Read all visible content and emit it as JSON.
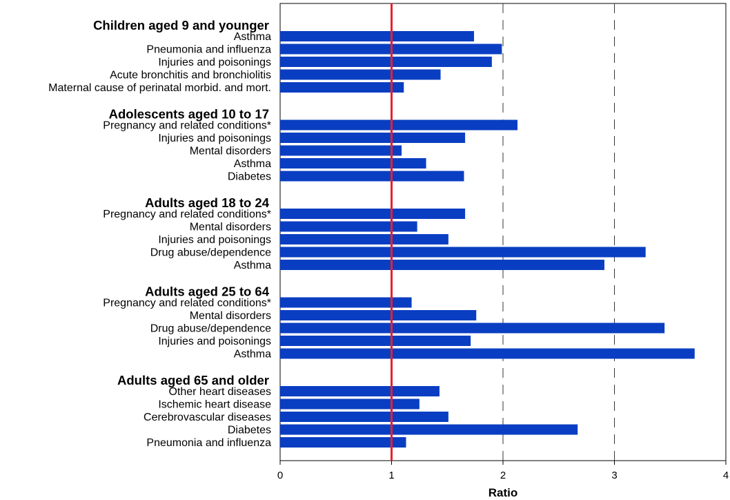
{
  "chart_data": {
    "type": "bar",
    "orientation": "horizontal",
    "xlabel": "Ratio",
    "xlim": [
      0,
      4
    ],
    "xticks": [
      "0",
      "1",
      "2",
      "3",
      "4"
    ],
    "reference_line": {
      "value": 1,
      "color": "#e8202a"
    },
    "dashed_gridlines_at": [
      2,
      3
    ],
    "bar_color": "#0a3ec2",
    "groups": [
      {
        "title": "Children aged 9 and younger",
        "items": [
          {
            "label": "Asthma",
            "value": 1.74
          },
          {
            "label": "Pneumonia and influenza",
            "value": 1.99
          },
          {
            "label": "Injuries and poisonings",
            "value": 1.9
          },
          {
            "label": "Acute bronchitis and bronchiolitis",
            "value": 1.44
          },
          {
            "label": "Maternal cause of perinatal morbid. and mort.",
            "value": 1.11
          }
        ]
      },
      {
        "title": "Adolescents aged 10 to 17",
        "items": [
          {
            "label": "Pregnancy and related conditions*",
            "value": 2.13
          },
          {
            "label": "Injuries and poisonings",
            "value": 1.66
          },
          {
            "label": "Mental disorders",
            "value": 1.09
          },
          {
            "label": "Asthma",
            "value": 1.31
          },
          {
            "label": "Diabetes",
            "value": 1.65
          }
        ]
      },
      {
        "title": "Adults aged 18 to 24",
        "items": [
          {
            "label": "Pregnancy and related conditions*",
            "value": 1.66
          },
          {
            "label": "Mental disorders",
            "value": 1.23
          },
          {
            "label": "Injuries and poisonings",
            "value": 1.51
          },
          {
            "label": "Drug abuse/dependence",
            "value": 3.28
          },
          {
            "label": "Asthma",
            "value": 2.91
          }
        ]
      },
      {
        "title": "Adults aged 25 to 64",
        "items": [
          {
            "label": "Pregnancy and related conditions*",
            "value": 1.18
          },
          {
            "label": "Mental disorders",
            "value": 1.76
          },
          {
            "label": "Drug abuse/dependence",
            "value": 3.45
          },
          {
            "label": "Injuries and poisonings",
            "value": 1.71
          },
          {
            "label": "Asthma",
            "value": 3.72
          }
        ]
      },
      {
        "title": "Adults aged 65 and older",
        "items": [
          {
            "label": "Other heart diseases",
            "value": 1.43
          },
          {
            "label": "Ischemic heart disease",
            "value": 1.25
          },
          {
            "label": "Cerebrovascular diseases",
            "value": 1.51
          },
          {
            "label": "Diabetes",
            "value": 2.67
          },
          {
            "label": "Pneumonia and influenza",
            "value": 1.13
          }
        ]
      }
    ]
  }
}
